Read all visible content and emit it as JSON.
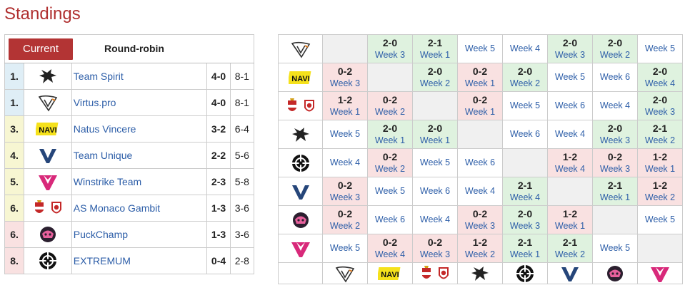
{
  "page": {
    "title": "Standings"
  },
  "tabs": {
    "current": "Current",
    "round_robin": "Round-robin"
  },
  "standings": [
    {
      "pos": "1.",
      "team": "Team Spirit",
      "score": "4-0",
      "games": "8-1",
      "bg": "blue",
      "logo": "spirit-logo"
    },
    {
      "pos": "1.",
      "team": "Virtus.pro",
      "score": "4-0",
      "games": "8-1",
      "bg": "blue",
      "logo": "virtuspro-logo"
    },
    {
      "pos": "3.",
      "team": "Natus Vincere",
      "score": "3-2",
      "games": "6-4",
      "bg": "yellow",
      "logo": "navi-logo"
    },
    {
      "pos": "4.",
      "team": "Team Unique",
      "score": "2-2",
      "games": "5-6",
      "bg": "yellow",
      "logo": "unique-logo"
    },
    {
      "pos": "5.",
      "team": "Winstrike Team",
      "score": "2-3",
      "games": "5-8",
      "bg": "yellow",
      "logo": "winstrike-logo"
    },
    {
      "pos": "6.",
      "team": "AS Monaco Gambit",
      "score": "1-3",
      "games": "3-6",
      "bg": "yellow",
      "logo": "monaco-gambit-logo"
    },
    {
      "pos": "6.",
      "team": "PuckChamp",
      "score": "1-3",
      "games": "3-6",
      "bg": "red",
      "logo": "puckchamp-logo"
    },
    {
      "pos": "8.",
      "team": "EXTREMUM",
      "score": "0-4",
      "games": "2-8",
      "bg": "red",
      "logo": "extremum-logo"
    }
  ],
  "matrix": {
    "rows": [
      {
        "logo": "virtuspro-logo",
        "cells": [
          {
            "t": "na"
          },
          {
            "t": "win",
            "r": "2-0",
            "w": "Week 3"
          },
          {
            "t": "win",
            "r": "2-1",
            "w": "Week 1"
          },
          {
            "t": "open",
            "w": "Week 5"
          },
          {
            "t": "open",
            "w": "Week 4"
          },
          {
            "t": "win",
            "r": "2-0",
            "w": "Week 3"
          },
          {
            "t": "win",
            "r": "2-0",
            "w": "Week 2"
          },
          {
            "t": "open",
            "w": "Week 5"
          }
        ]
      },
      {
        "logo": "navi-logo",
        "cells": [
          {
            "t": "loss",
            "r": "0-2",
            "w": "Week 3"
          },
          {
            "t": "na"
          },
          {
            "t": "win",
            "r": "2-0",
            "w": "Week 2"
          },
          {
            "t": "loss",
            "r": "0-2",
            "w": "Week 1"
          },
          {
            "t": "win",
            "r": "2-0",
            "w": "Week 2"
          },
          {
            "t": "open",
            "w": "Week 5"
          },
          {
            "t": "open",
            "w": "Week 6"
          },
          {
            "t": "win",
            "r": "2-0",
            "w": "Week 4"
          }
        ]
      },
      {
        "logo": "monaco-gambit-logo",
        "cells": [
          {
            "t": "loss",
            "r": "1-2",
            "w": "Week 1"
          },
          {
            "t": "loss",
            "r": "0-2",
            "w": "Week 2"
          },
          {
            "t": "na"
          },
          {
            "t": "loss",
            "r": "0-2",
            "w": "Week 1"
          },
          {
            "t": "open",
            "w": "Week 5"
          },
          {
            "t": "open",
            "w": "Week 6"
          },
          {
            "t": "open",
            "w": "Week 4"
          },
          {
            "t": "win",
            "r": "2-0",
            "w": "Week 3"
          }
        ]
      },
      {
        "logo": "spirit-logo",
        "cells": [
          {
            "t": "open",
            "w": "Week 5"
          },
          {
            "t": "win",
            "r": "2-0",
            "w": "Week 1"
          },
          {
            "t": "win",
            "r": "2-0",
            "w": "Week 1"
          },
          {
            "t": "na"
          },
          {
            "t": "open",
            "w": "Week 6"
          },
          {
            "t": "open",
            "w": "Week 4"
          },
          {
            "t": "win",
            "r": "2-0",
            "w": "Week 3"
          },
          {
            "t": "win",
            "r": "2-1",
            "w": "Week 2"
          }
        ]
      },
      {
        "logo": "extremum-logo",
        "cells": [
          {
            "t": "open",
            "w": "Week 4"
          },
          {
            "t": "loss",
            "r": "0-2",
            "w": "Week 2"
          },
          {
            "t": "open",
            "w": "Week 5"
          },
          {
            "t": "open",
            "w": "Week 6"
          },
          {
            "t": "na"
          },
          {
            "t": "loss",
            "r": "1-2",
            "w": "Week 4"
          },
          {
            "t": "loss",
            "r": "0-2",
            "w": "Week 3"
          },
          {
            "t": "loss",
            "r": "1-2",
            "w": "Week 1"
          }
        ]
      },
      {
        "logo": "unique-logo",
        "cells": [
          {
            "t": "loss",
            "r": "0-2",
            "w": "Week 3"
          },
          {
            "t": "open",
            "w": "Week 5"
          },
          {
            "t": "open",
            "w": "Week 6"
          },
          {
            "t": "open",
            "w": "Week 4"
          },
          {
            "t": "win",
            "r": "2-1",
            "w": "Week 4"
          },
          {
            "t": "na"
          },
          {
            "t": "win",
            "r": "2-1",
            "w": "Week 1"
          },
          {
            "t": "loss",
            "r": "1-2",
            "w": "Week 2"
          }
        ]
      },
      {
        "logo": "puckchamp-logo",
        "cells": [
          {
            "t": "loss",
            "r": "0-2",
            "w": "Week 2"
          },
          {
            "t": "open",
            "w": "Week 6"
          },
          {
            "t": "open",
            "w": "Week 4"
          },
          {
            "t": "loss",
            "r": "0-2",
            "w": "Week 3"
          },
          {
            "t": "win",
            "r": "2-0",
            "w": "Week 3"
          },
          {
            "t": "loss",
            "r": "1-2",
            "w": "Week 1"
          },
          {
            "t": "na"
          },
          {
            "t": "open",
            "w": "Week 5"
          }
        ]
      },
      {
        "logo": "winstrike-logo",
        "cells": [
          {
            "t": "open",
            "w": "Week 5"
          },
          {
            "t": "loss",
            "r": "0-2",
            "w": "Week 4"
          },
          {
            "t": "loss",
            "r": "0-2",
            "w": "Week 3"
          },
          {
            "t": "loss",
            "r": "1-2",
            "w": "Week 2"
          },
          {
            "t": "win",
            "r": "2-1",
            "w": "Week 1"
          },
          {
            "t": "win",
            "r": "2-1",
            "w": "Week 2"
          },
          {
            "t": "open",
            "w": "Week 5"
          },
          {
            "t": "na"
          }
        ]
      }
    ],
    "column_logos": [
      "virtuspro-logo",
      "navi-logo",
      "monaco-gambit-logo",
      "spirit-logo",
      "extremum-logo",
      "unique-logo",
      "puckchamp-logo",
      "winstrike-logo"
    ]
  },
  "colors": {
    "accent": "#b33434",
    "link": "#2d5ea8",
    "win": "#dff2df",
    "loss": "#f9e1e1"
  }
}
